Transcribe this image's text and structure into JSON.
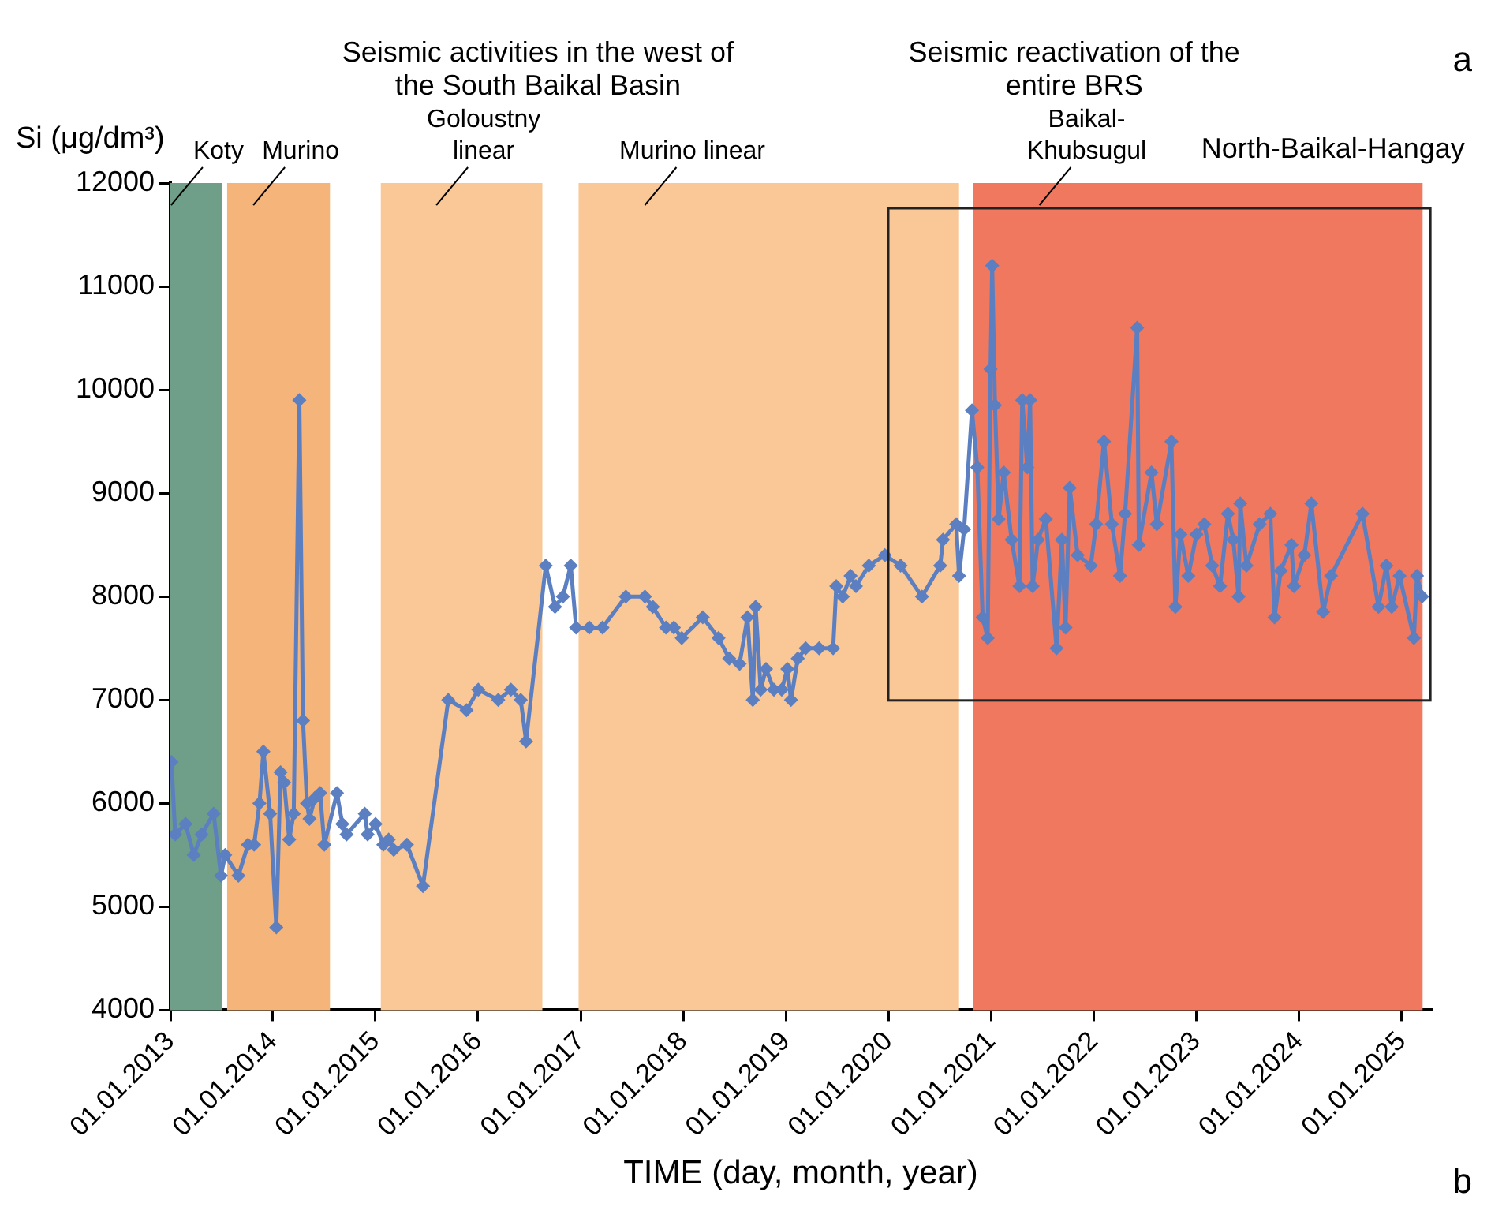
{
  "chart_data": {
    "type": "line",
    "xlabel": "TIME (day, month, year)",
    "ylabel": "Si (μg/dm³)",
    "x": [
      "2013-01-05",
      "2013-01-18",
      "2013-02-24",
      "2013-03-25",
      "2013-04-22",
      "2013-06-04",
      "2013-06-30",
      "2013-07-15",
      "2013-08-31",
      "2013-10-04",
      "2013-10-26",
      "2013-11-14",
      "2013-11-28",
      "2013-12-22",
      "2014-01-13",
      "2014-01-28",
      "2014-02-10",
      "2014-02-28",
      "2014-03-16",
      "2014-04-05",
      "2014-04-18",
      "2014-05-02",
      "2014-05-11",
      "2014-05-30",
      "2014-06-18",
      "2014-07-03",
      "2014-08-17",
      "2014-09-05",
      "2014-09-20",
      "2014-11-24",
      "2014-12-04",
      "2015-01-01",
      "2015-01-29",
      "2015-02-17",
      "2015-03-07",
      "2015-04-23",
      "2015-06-19",
      "2015-09-17",
      "2015-11-21",
      "2016-01-02",
      "2016-03-13",
      "2016-04-27",
      "2016-06-01",
      "2016-06-20",
      "2016-08-29",
      "2016-10-01",
      "2016-10-29",
      "2016-11-26",
      "2016-12-15",
      "2017-01-31",
      "2017-03-19",
      "2017-06-10",
      "2017-08-17",
      "2017-09-14",
      "2017-10-31",
      "2017-11-28",
      "2017-12-26",
      "2018-03-11",
      "2018-05-06",
      "2018-06-13",
      "2018-07-20",
      "2018-08-17",
      "2018-09-05",
      "2018-09-15",
      "2018-10-03",
      "2018-10-22",
      "2018-11-19",
      "2018-12-17",
      "2019-01-06",
      "2019-01-19",
      "2019-02-12",
      "2019-03-12",
      "2019-04-29",
      "2019-06-18",
      "2019-06-29",
      "2019-07-22",
      "2019-08-19",
      "2019-09-07",
      "2019-10-23",
      "2019-12-19",
      "2020-02-13",
      "2020-04-29",
      "2020-07-03",
      "2020-07-13",
      "2020-08-29",
      "2020-09-08",
      "2020-09-26",
      "2020-10-24",
      "2020-11-12",
      "2020-12-01",
      "2020-12-19",
      "2020-12-29",
      "2021-01-04",
      "2021-01-14",
      "2021-01-27",
      "2021-02-14",
      "2021-03-14",
      "2021-04-11",
      "2021-04-21",
      "2021-05-09",
      "2021-05-19",
      "2021-05-28",
      "2021-06-16",
      "2021-07-14",
      "2021-08-21",
      "2021-09-09",
      "2021-09-22",
      "2021-10-07",
      "2021-11-04",
      "2021-12-21",
      "2022-01-09",
      "2022-02-06",
      "2022-03-06",
      "2022-04-04",
      "2022-04-22",
      "2022-06-04",
      "2022-06-10",
      "2022-07-25",
      "2022-08-13",
      "2022-10-04",
      "2022-10-18",
      "2022-11-05",
      "2022-12-03",
      "2023-01-01",
      "2023-01-29",
      "2023-02-26",
      "2023-03-26",
      "2023-04-23",
      "2023-05-12",
      "2023-05-31",
      "2023-06-06",
      "2023-06-28",
      "2023-08-14",
      "2023-09-21",
      "2023-10-06",
      "2023-10-28",
      "2023-12-05",
      "2023-12-14",
      "2024-01-20",
      "2024-02-14",
      "2024-03-27",
      "2024-04-24",
      "2024-08-14",
      "2024-10-10",
      "2024-11-07",
      "2024-11-26",
      "2024-12-24",
      "2025-02-13",
      "2025-02-24",
      "2025-03-14"
    ],
    "series": [
      {
        "color": "#5b7fc0",
        "values": [
          6400,
          5700,
          5800,
          5500,
          5700,
          5900,
          5300,
          5500,
          5300,
          5600,
          5600,
          6000,
          6500,
          5900,
          4800,
          6300,
          6200,
          5650,
          5900,
          9900,
          6800,
          6000,
          5850,
          6050,
          6100,
          5600,
          6100,
          5800,
          5700,
          5900,
          5700,
          5800,
          5600,
          5650,
          5550,
          5600,
          5200,
          7000,
          6900,
          7100,
          7000,
          7100,
          7000,
          6600,
          8300,
          7900,
          8000,
          8300,
          7700,
          7700,
          7700,
          8000,
          8000,
          7900,
          7700,
          7700,
          7600,
          7800,
          7600,
          7400,
          7350,
          7800,
          7000,
          7900,
          7100,
          7300,
          7100,
          7100,
          7300,
          7000,
          7400,
          7500,
          7500,
          7500,
          8100,
          8000,
          8200,
          8100,
          8300,
          8400,
          8300,
          8000,
          8300,
          8550,
          8700,
          8200,
          8650,
          9800,
          9250,
          7800,
          7600,
          10200,
          11200,
          9850,
          8750,
          9200,
          8550,
          8100,
          9900,
          9250,
          9900,
          8100,
          8550,
          8750,
          7500,
          8550,
          7700,
          9050,
          8400,
          8300,
          8700,
          9500,
          8700,
          8200,
          8800,
          10600,
          8500,
          9200,
          8700,
          9500,
          7900,
          8600,
          8200,
          8600,
          8700,
          8300,
          8100,
          8800,
          8550,
          8000,
          8900,
          8300,
          8700,
          8800,
          7800,
          8250,
          8500,
          8100,
          8400,
          8900,
          7850,
          8200,
          8800,
          7900,
          8300,
          7900,
          8200,
          7600,
          8200,
          8000
        ]
      }
    ],
    "xlim": [
      "2013-01-01",
      "2025-04-15"
    ],
    "xticks": [
      {
        "value": "2013-01-01",
        "label": "01.01.2013"
      },
      {
        "value": "2014-01-01",
        "label": "01.01.2014"
      },
      {
        "value": "2015-01-01",
        "label": "01.01.2015"
      },
      {
        "value": "2016-01-01",
        "label": "01.01.2016"
      },
      {
        "value": "2017-01-01",
        "label": "01.01.2017"
      },
      {
        "value": "2018-01-01",
        "label": "01.01.2018"
      },
      {
        "value": "2019-01-01",
        "label": "01.01.2019"
      },
      {
        "value": "2020-01-01",
        "label": "01.01.2020"
      },
      {
        "value": "2021-01-01",
        "label": "01.01.2021"
      },
      {
        "value": "2022-01-01",
        "label": "01.01.2022"
      },
      {
        "value": "2023-01-01",
        "label": "01.01.2023"
      },
      {
        "value": "2024-01-01",
        "label": "01.01.2024"
      },
      {
        "value": "2025-01-01",
        "label": "01.01.2025"
      }
    ],
    "ylim": [
      4000,
      12000
    ],
    "yticks": [
      4000,
      5000,
      6000,
      7000,
      8000,
      9000,
      10000,
      11000,
      12000
    ],
    "marker": "diamond",
    "line_style": "solid",
    "grid": false,
    "bands": [
      {
        "axis": "x",
        "from": "2013-01-01",
        "to": "2013-07-05",
        "label": "Koty",
        "color": "#6f9f88"
      },
      {
        "axis": "x",
        "from": "2013-07-22",
        "to": "2014-07-23",
        "label": "Murino",
        "color": "#f4b47a"
      },
      {
        "axis": "x",
        "from": "2015-01-20",
        "to": "2016-08-17",
        "label": "Goloustny linear",
        "color": "#fac896"
      },
      {
        "axis": "x",
        "from": "2016-12-24",
        "to": "2020-09-08",
        "label": "Murino linear",
        "color": "#fac896"
      },
      {
        "axis": "x",
        "from": "2020-10-28",
        "to": "2025-03-16",
        "label": "Baikal-Khubsugul",
        "color": "#ef785f"
      }
    ],
    "annotations": [
      {
        "text": "North-Baikal-Hangay",
        "x": "2024-05-01",
        "y": 12000
      },
      {
        "text": "Seismic activities in the west of the South Baikal Basin",
        "x": "2016-08-01",
        "y": 12000
      },
      {
        "text": "Seismic reactivation of the entire BRS",
        "x": "2021-10-23",
        "y": 12000
      },
      "a",
      "b"
    ]
  }
}
